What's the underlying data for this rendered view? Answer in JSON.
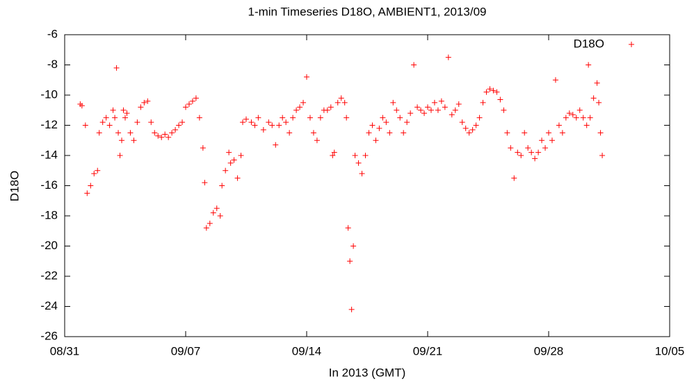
{
  "chart_data": {
    "type": "scatter",
    "title": "1-min Timeseries D18O, AMBIENT1, 2013/09",
    "x_label": "In 2013 (GMT)",
    "y_label": "D18O",
    "xlim": [
      0,
      35
    ],
    "ylim": [
      -26,
      -6
    ],
    "xticks": [
      {
        "value": 0,
        "label": "08/31"
      },
      {
        "value": 7,
        "label": "09/07"
      },
      {
        "value": 14,
        "label": "09/14"
      },
      {
        "value": 21,
        "label": "09/21"
      },
      {
        "value": 28,
        "label": "09/28"
      },
      {
        "value": 35,
        "label": "10/05"
      }
    ],
    "yticks": [
      -26,
      -24,
      -22,
      -20,
      -18,
      -16,
      -14,
      -12,
      -10,
      -8,
      -6
    ],
    "legend": "top-right",
    "series": [
      {
        "name": "D18O",
        "color": "#ff0000",
        "x": [
          0.9,
          1.0,
          1.2,
          1.3,
          1.5,
          1.7,
          1.9,
          2.0,
          2.2,
          2.4,
          2.6,
          2.8,
          2.9,
          3.0,
          3.1,
          3.2,
          3.3,
          3.4,
          3.5,
          3.6,
          3.8,
          4.0,
          4.2,
          4.4,
          4.6,
          4.8,
          5.0,
          5.2,
          5.4,
          5.6,
          5.8,
          6.0,
          6.2,
          6.4,
          6.6,
          6.8,
          7.0,
          7.2,
          7.4,
          7.6,
          7.8,
          8.0,
          8.1,
          8.2,
          8.4,
          8.6,
          8.8,
          9.0,
          9.1,
          9.3,
          9.5,
          9.6,
          9.8,
          10.0,
          10.2,
          10.3,
          10.5,
          10.8,
          11.0,
          11.2,
          11.5,
          11.8,
          12.0,
          12.2,
          12.4,
          12.6,
          12.8,
          13.0,
          13.2,
          13.4,
          13.6,
          13.8,
          14.0,
          14.2,
          14.4,
          14.6,
          14.8,
          15.0,
          15.2,
          15.4,
          15.5,
          15.6,
          15.8,
          16.0,
          16.2,
          16.3,
          16.4,
          16.5,
          16.6,
          16.7,
          16.8,
          17.0,
          17.2,
          17.4,
          17.6,
          17.8,
          18.0,
          18.2,
          18.4,
          18.6,
          18.8,
          19.0,
          19.2,
          19.4,
          19.6,
          19.8,
          20.0,
          20.2,
          20.4,
          20.6,
          20.8,
          21.0,
          21.2,
          21.4,
          21.6,
          21.8,
          22.0,
          22.2,
          22.4,
          22.6,
          22.8,
          23.0,
          23.2,
          23.4,
          23.6,
          23.8,
          24.0,
          24.2,
          24.4,
          24.6,
          24.8,
          25.0,
          25.2,
          25.4,
          25.6,
          25.8,
          26.0,
          26.2,
          26.4,
          26.6,
          26.8,
          27.0,
          27.2,
          27.4,
          27.6,
          27.8,
          28.0,
          28.2,
          28.4,
          28.6,
          28.8,
          29.0,
          29.2,
          29.4,
          29.6,
          29.8,
          30.0,
          30.2,
          30.3,
          30.4,
          30.6,
          30.8,
          30.9,
          31.0,
          31.1
        ],
        "values": [
          -10.6,
          -10.7,
          -12.0,
          -16.5,
          -16.0,
          -15.2,
          -15.0,
          -12.5,
          -11.8,
          -11.5,
          -12.0,
          -11.0,
          -11.5,
          -8.2,
          -12.5,
          -14.0,
          -13.0,
          -11.0,
          -11.5,
          -11.2,
          -12.5,
          -13.0,
          -11.8,
          -10.8,
          -10.5,
          -10.4,
          -11.8,
          -12.5,
          -12.7,
          -12.8,
          -12.6,
          -12.8,
          -12.5,
          -12.3,
          -12.0,
          -11.8,
          -10.8,
          -10.6,
          -10.4,
          -10.2,
          -11.5,
          -13.5,
          -15.8,
          -18.8,
          -18.5,
          -17.8,
          -17.5,
          -18.0,
          -16.0,
          -15.0,
          -13.8,
          -14.5,
          -14.3,
          -15.5,
          -14.0,
          -11.8,
          -11.6,
          -11.8,
          -12.0,
          -11.5,
          -12.3,
          -11.8,
          -12.0,
          -13.3,
          -12.0,
          -11.5,
          -11.8,
          -12.5,
          -11.5,
          -11.0,
          -10.8,
          -10.5,
          -8.8,
          -11.5,
          -12.5,
          -13.0,
          -11.5,
          -11.0,
          -11.0,
          -10.8,
          -14.0,
          -13.8,
          -10.5,
          -10.2,
          -10.5,
          -11.5,
          -18.8,
          -21.0,
          -24.2,
          -20.0,
          -14.0,
          -14.5,
          -15.2,
          -14.0,
          -12.5,
          -12.0,
          -13.0,
          -12.2,
          -11.5,
          -11.8,
          -12.5,
          -10.5,
          -11.0,
          -11.5,
          -12.5,
          -11.8,
          -11.2,
          -8.0,
          -10.8,
          -11.0,
          -11.2,
          -10.8,
          -11.0,
          -10.5,
          -11.0,
          -10.4,
          -10.8,
          -7.5,
          -11.3,
          -11.0,
          -10.6,
          -11.8,
          -12.2,
          -12.5,
          -12.3,
          -12.0,
          -11.5,
          -10.5,
          -9.8,
          -9.6,
          -9.7,
          -9.8,
          -10.3,
          -11.0,
          -12.5,
          -13.5,
          -15.5,
          -13.8,
          -14.0,
          -12.5,
          -13.5,
          -13.8,
          -14.2,
          -13.8,
          -13.0,
          -13.5,
          -12.5,
          -13.0,
          -9.0,
          -12.0,
          -12.5,
          -11.5,
          -11.2,
          -11.3,
          -11.5,
          -11.0,
          -11.5,
          -12.0,
          -8.0,
          -11.5,
          -10.2,
          -9.2,
          -10.5,
          -12.5,
          -14.0
        ]
      }
    ]
  }
}
